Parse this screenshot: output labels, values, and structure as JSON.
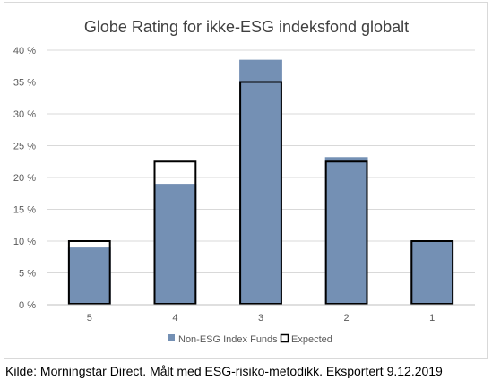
{
  "caption": "Kilde: Morningstar Direct. Målt med ESG-risiko-metodikk. Eksportert 9.12.2019",
  "chart_data": {
    "type": "bar",
    "title": "Globe Rating for ikke-ESG indeksfond globalt",
    "categories": [
      "5",
      "4",
      "3",
      "2",
      "1"
    ],
    "series": [
      {
        "name": "Non-ESG Index Funds",
        "values": [
          9,
          19,
          38.5,
          23.2,
          10
        ],
        "color": "#7490b4",
        "style": "filled"
      },
      {
        "name": "Expected",
        "values": [
          10,
          22.5,
          35,
          22.5,
          10
        ],
        "color": "#000000",
        "style": "outline"
      }
    ],
    "ylim": [
      0,
      40
    ],
    "yticks": [
      "0 %",
      "5 %",
      "10 %",
      "15 %",
      "20 %",
      "25 %",
      "30 %",
      "35 %",
      "40 %"
    ],
    "grid": true,
    "legend_position": "bottom"
  }
}
